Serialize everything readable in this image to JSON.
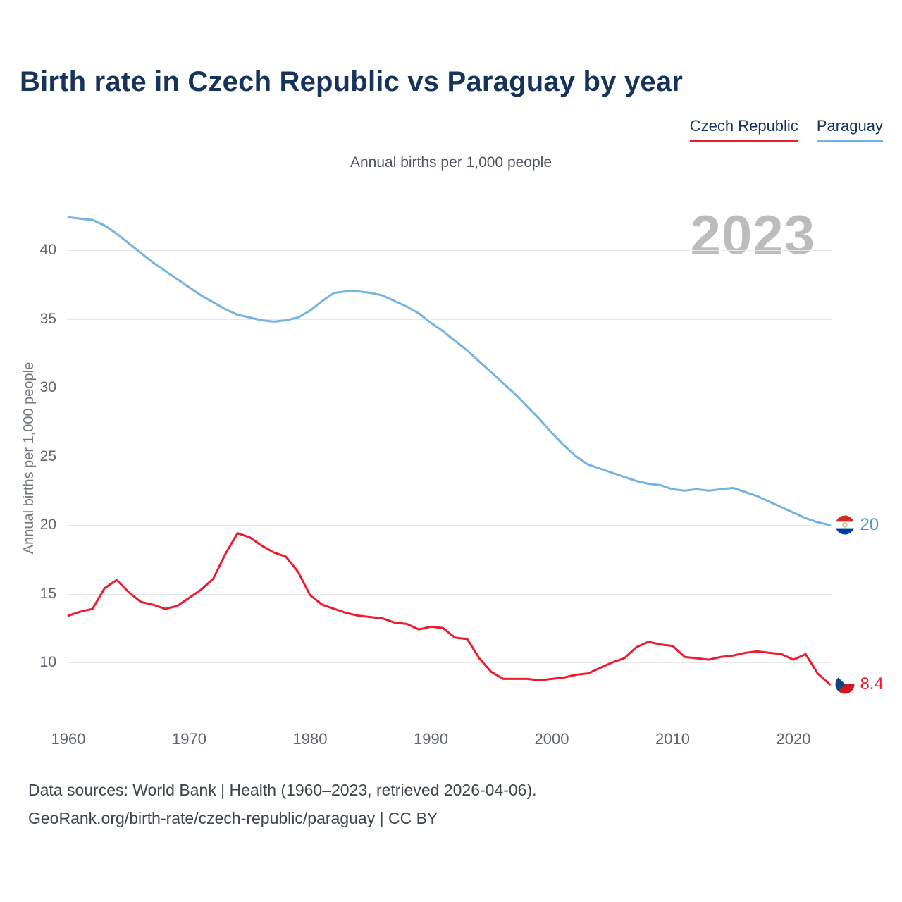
{
  "title": "Birth rate in Czech Republic vs Paraguay by year",
  "subtitle": "Annual births per 1,000 people",
  "watermark": "2023",
  "legend": [
    {
      "label": "Czech Republic",
      "color": "#ed1b2d"
    },
    {
      "label": "Paraguay",
      "color": "#74b2e2"
    }
  ],
  "end_labels": [
    {
      "series": "Paraguay",
      "value": "20",
      "color": "#4793d7"
    },
    {
      "series": "Czech Republic",
      "value": "8.4",
      "color": "#ed1b2d"
    }
  ],
  "footer": {
    "line1": "Data sources: World Bank | Health (1960–2023, retrieved 2026-04-06).",
    "line2": "GeoRank.org/birth-rate/czech-republic/paraguay | CC BY"
  },
  "chart_data": {
    "type": "line",
    "title": "Birth rate in Czech Republic vs Paraguay by year",
    "subtitle": "Annual births per 1,000 people",
    "xlabel": "",
    "ylabel": "Annual births per 1,000 people",
    "xlim": [
      1960,
      2023
    ],
    "ylim": [
      5,
      44
    ],
    "xticks": [
      1960,
      1970,
      1980,
      1990,
      2000,
      2010,
      2020
    ],
    "yticks": [
      10,
      15,
      20,
      25,
      30,
      35,
      40
    ],
    "grid": "horizontal",
    "legend_position": "top-right",
    "x": [
      1960,
      1961,
      1962,
      1963,
      1964,
      1965,
      1966,
      1967,
      1968,
      1969,
      1970,
      1971,
      1972,
      1973,
      1974,
      1975,
      1976,
      1977,
      1978,
      1979,
      1980,
      1981,
      1982,
      1983,
      1984,
      1985,
      1986,
      1987,
      1988,
      1989,
      1990,
      1991,
      1992,
      1993,
      1994,
      1995,
      1996,
      1997,
      1998,
      1999,
      2000,
      2001,
      2002,
      2003,
      2004,
      2005,
      2006,
      2007,
      2008,
      2009,
      2010,
      2011,
      2012,
      2013,
      2014,
      2015,
      2016,
      2017,
      2018,
      2019,
      2020,
      2021,
      2022,
      2023
    ],
    "series": [
      {
        "name": "Czech Republic",
        "color": "#ed1b2d",
        "end_value": 8.4,
        "values": [
          13.4,
          13.7,
          13.9,
          15.4,
          16.0,
          15.1,
          14.4,
          14.2,
          13.9,
          14.1,
          14.7,
          15.3,
          16.1,
          17.9,
          19.4,
          19.1,
          18.5,
          18.0,
          17.7,
          16.6,
          14.9,
          14.2,
          13.9,
          13.6,
          13.4,
          13.3,
          13.2,
          12.9,
          12.8,
          12.4,
          12.6,
          12.5,
          11.8,
          11.7,
          10.3,
          9.3,
          8.8,
          8.8,
          8.8,
          8.7,
          8.8,
          8.9,
          9.1,
          9.2,
          9.6,
          10.0,
          10.3,
          11.1,
          11.5,
          11.3,
          11.2,
          10.4,
          10.3,
          10.2,
          10.4,
          10.5,
          10.7,
          10.8,
          10.7,
          10.6,
          10.2,
          10.6,
          9.2,
          8.4
        ]
      },
      {
        "name": "Paraguay",
        "color": "#74b2e2",
        "end_value": 20,
        "values": [
          42.4,
          42.3,
          42.2,
          41.8,
          41.2,
          40.5,
          39.8,
          39.1,
          38.5,
          37.9,
          37.3,
          36.7,
          36.2,
          35.7,
          35.3,
          35.1,
          34.9,
          34.8,
          34.9,
          35.1,
          35.6,
          36.3,
          36.9,
          37.0,
          37.0,
          36.9,
          36.7,
          36.3,
          35.9,
          35.4,
          34.7,
          34.1,
          33.4,
          32.7,
          31.9,
          31.1,
          30.3,
          29.5,
          28.6,
          27.7,
          26.7,
          25.8,
          25.0,
          24.4,
          24.1,
          23.8,
          23.5,
          23.2,
          23.0,
          22.9,
          22.6,
          22.5,
          22.6,
          22.5,
          22.6,
          22.7,
          22.4,
          22.1,
          21.7,
          21.3,
          20.9,
          20.5,
          20.2,
          20.0
        ]
      }
    ]
  }
}
